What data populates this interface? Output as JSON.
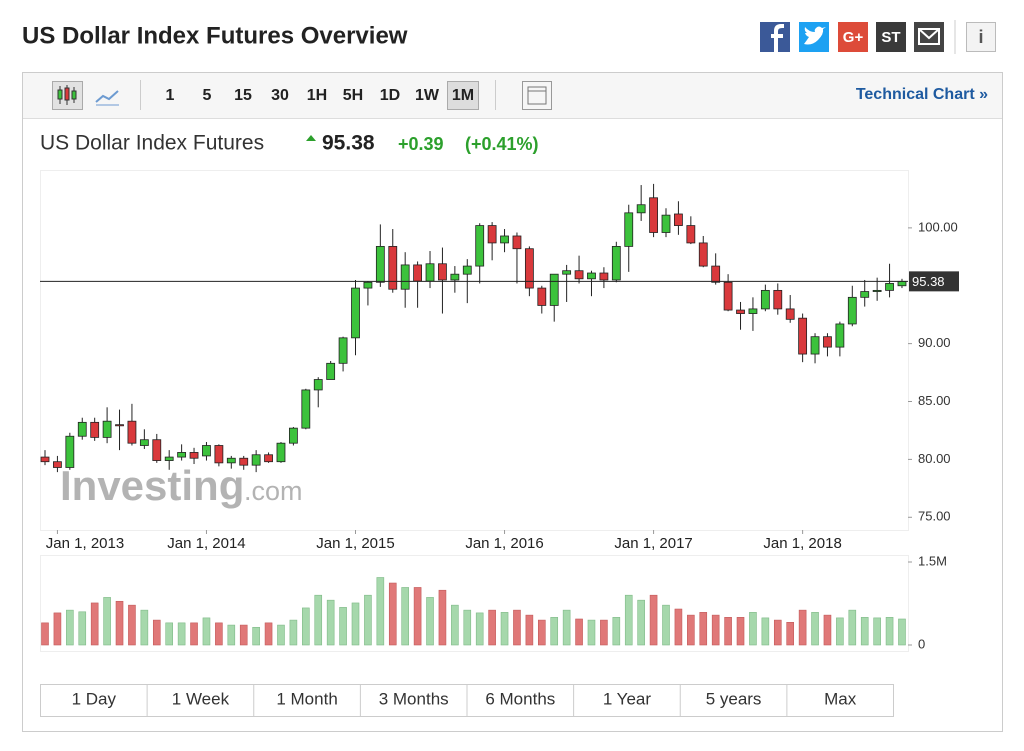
{
  "header": {
    "title": "US Dollar Index Futures Overview",
    "share_labels": [
      "G+",
      "ST"
    ],
    "info": "i"
  },
  "toolbar": {
    "periods": [
      "1",
      "5",
      "15",
      "30",
      "1H",
      "5H",
      "1D",
      "1W",
      "1M"
    ],
    "active": "1M",
    "link": "Technical Chart »"
  },
  "quote": {
    "name": "US Dollar Index Futures",
    "price": "95.38",
    "change": "+0.39",
    "change_pct": "(+0.41%)",
    "color": "#2ca02c"
  },
  "watermark": [
    "Investing",
    ".com"
  ],
  "ranges": [
    "1 Day",
    "1 Week",
    "1 Month",
    "3 Months",
    "6 Months",
    "1 Year",
    "5 years",
    "Max"
  ],
  "chart_data": {
    "type": "candlestick",
    "categories": [
      null,
      "Jan 1, 2013",
      null,
      null,
      null,
      null,
      null,
      null,
      null,
      null,
      null,
      null,
      null,
      "Jan 1, 2014",
      null,
      null,
      null,
      null,
      null,
      null,
      null,
      null,
      null,
      null,
      null,
      "Jan 1, 2015",
      null,
      null,
      null,
      null,
      null,
      null,
      null,
      null,
      null,
      null,
      null,
      "Jan 1, 2016",
      null,
      null,
      null,
      null,
      null,
      null,
      null,
      null,
      null,
      null,
      null,
      "Jan 1, 2017",
      null,
      null,
      null,
      null,
      null,
      null,
      null,
      null,
      null,
      null,
      null,
      "Jan 1, 2018",
      null,
      null,
      null,
      null,
      null,
      null,
      null,
      null
    ],
    "open": [
      80.2,
      79.8,
      79.3,
      82.0,
      83.2,
      81.9,
      83.0,
      83.3,
      81.2,
      81.7,
      79.9,
      80.2,
      80.6,
      80.3,
      81.2,
      79.7,
      80.1,
      79.5,
      80.4,
      79.8,
      81.4,
      82.7,
      86.0,
      86.9,
      88.3,
      90.5,
      94.8,
      95.3,
      98.4,
      94.7,
      96.8,
      95.4,
      96.9,
      95.5,
      96.0,
      96.7,
      100.2,
      98.7,
      99.3,
      98.2,
      94.8,
      93.3,
      96.0,
      96.3,
      95.6,
      96.1,
      95.5,
      98.4,
      101.3,
      102.6,
      99.6,
      101.2,
      100.2,
      98.7,
      96.7,
      95.3,
      92.9,
      92.6,
      93.0,
      94.6,
      93.0,
      92.2,
      89.1,
      90.6,
      89.7,
      91.7,
      94.0,
      94.5,
      94.6,
      95.0
    ],
    "high": [
      80.8,
      80.3,
      82.3,
      83.6,
      83.6,
      84.5,
      84.3,
      84.8,
      82.6,
      82.2,
      80.8,
      81.3,
      81.0,
      81.5,
      81.3,
      80.3,
      80.3,
      80.8,
      80.6,
      81.5,
      82.8,
      86.1,
      87.1,
      88.5,
      90.6,
      95.5,
      95.4,
      100.3,
      99.9,
      97.9,
      97.1,
      98.0,
      98.3,
      96.7,
      97.3,
      100.4,
      100.5,
      99.9,
      99.6,
      98.4,
      95.0,
      96.0,
      96.8,
      97.6,
      96.3,
      96.6,
      98.8,
      102.0,
      103.7,
      103.8,
      101.7,
      102.3,
      101.0,
      99.3,
      97.8,
      96.0,
      93.6,
      94.0,
      95.1,
      95.2,
      94.2,
      92.6,
      90.9,
      90.9,
      91.9,
      95.0,
      95.5,
      95.7,
      96.9,
      95.6
    ],
    "low": [
      79.5,
      78.9,
      79.1,
      81.7,
      81.6,
      81.4,
      80.8,
      81.2,
      80.9,
      79.7,
      79.1,
      79.9,
      79.6,
      79.9,
      79.4,
      79.2,
      79.1,
      78.9,
      79.7,
      79.7,
      81.2,
      82.6,
      84.5,
      86.9,
      87.6,
      89.0,
      93.3,
      94.9,
      94.4,
      93.1,
      93.1,
      94.8,
      92.6,
      94.4,
      93.5,
      95.2,
      97.2,
      97.9,
      95.2,
      94.1,
      92.6,
      91.9,
      93.6,
      95.2,
      94.1,
      94.8,
      95.3,
      96.2,
      100.6,
      99.2,
      99.2,
      99.4,
      98.6,
      96.6,
      95.1,
      92.8,
      91.2,
      91.1,
      92.8,
      92.5,
      91.8,
      88.4,
      88.3,
      88.9,
      88.9,
      91.5,
      93.2,
      93.7,
      94.0,
      94.8
    ],
    "close": [
      79.8,
      79.3,
      82.0,
      83.2,
      81.9,
      83.3,
      82.9,
      81.4,
      81.7,
      79.9,
      80.2,
      80.6,
      80.1,
      81.2,
      79.7,
      80.1,
      79.5,
      80.4,
      79.8,
      81.4,
      82.7,
      86.0,
      86.9,
      88.3,
      90.5,
      94.8,
      95.3,
      98.4,
      94.7,
      96.8,
      95.4,
      96.9,
      95.5,
      96.0,
      96.7,
      100.2,
      98.7,
      99.3,
      98.2,
      94.8,
      93.3,
      96.0,
      96.3,
      95.6,
      96.1,
      95.5,
      98.4,
      101.3,
      102.0,
      99.6,
      101.1,
      100.2,
      98.7,
      96.7,
      95.3,
      92.9,
      92.6,
      93.0,
      94.6,
      93.0,
      92.1,
      89.1,
      90.6,
      89.7,
      91.7,
      94.0,
      94.5,
      94.6,
      95.2,
      95.38
    ],
    "volume": [
      400000,
      580000,
      630000,
      600000,
      760000,
      860000,
      790000,
      720000,
      630000,
      450000,
      400000,
      400000,
      400000,
      490000,
      400000,
      360000,
      360000,
      320000,
      400000,
      360000,
      450000,
      670000,
      900000,
      810000,
      680000,
      760000,
      900000,
      1220000,
      1120000,
      1040000,
      1040000,
      860000,
      990000,
      720000,
      630000,
      580000,
      630000,
      590000,
      630000,
      540000,
      450000,
      500000,
      630000,
      470000,
      450000,
      450000,
      500000,
      900000,
      810000,
      900000,
      720000,
      650000,
      540000,
      590000,
      540000,
      500000,
      500000,
      590000,
      490000,
      450000,
      410000,
      630000,
      590000,
      540000,
      490000,
      630000,
      500000,
      490000,
      500000,
      470000
    ],
    "ylim": [
      73.9,
      105
    ],
    "yticks": [
      {
        "value": 75,
        "label": "75.00"
      },
      {
        "value": 80,
        "label": "80.00"
      },
      {
        "value": 85,
        "label": "85.00"
      },
      {
        "value": 90,
        "label": "90.00"
      },
      {
        "value": 100,
        "label": "100.00"
      }
    ],
    "last_price": 95.38,
    "y2lim": [
      0,
      1500000
    ],
    "y2ticks": [
      0,
      {
        "value": 1500000,
        "label": "1.5M"
      }
    ],
    "up_color": "#3cc23c",
    "down_color": "#d9393c",
    "volume_up_color": "#a6d8ac",
    "volume_down_color": "#e07878"
  }
}
